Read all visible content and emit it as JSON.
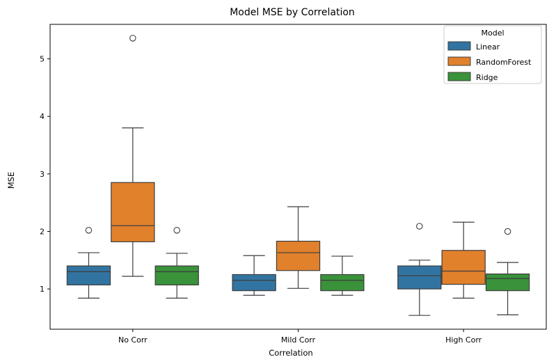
{
  "chart_data": {
    "type": "box",
    "title": "Model MSE by Correlation",
    "xlabel": "Correlation",
    "ylabel": "MSE",
    "ylim": [
      0.3,
      5.6
    ],
    "yticks": [
      1,
      2,
      3,
      4,
      5
    ],
    "categories": [
      "No Corr",
      "Mild Corr",
      "High Corr"
    ],
    "legend": {
      "title": "Model",
      "position": "top-right"
    },
    "series": [
      {
        "name": "Linear",
        "color": "#3274a1",
        "boxes": [
          {
            "whisker_low": 0.84,
            "q1": 1.07,
            "median": 1.3,
            "q3": 1.4,
            "whisker_high": 1.63,
            "outliers": [
              2.02
            ]
          },
          {
            "whisker_low": 0.89,
            "q1": 0.97,
            "median": 1.15,
            "q3": 1.25,
            "whisker_high": 1.58,
            "outliers": []
          },
          {
            "whisker_low": 0.54,
            "q1": 1.0,
            "median": 1.23,
            "q3": 1.4,
            "whisker_high": 1.5,
            "outliers": [
              2.09
            ]
          }
        ]
      },
      {
        "name": "RandomForest",
        "color": "#e1812c",
        "boxes": [
          {
            "whisker_low": 1.22,
            "q1": 1.82,
            "median": 2.1,
            "q3": 2.85,
            "whisker_high": 3.8,
            "outliers": [
              5.36
            ]
          },
          {
            "whisker_low": 1.01,
            "q1": 1.32,
            "median": 1.63,
            "q3": 1.83,
            "whisker_high": 2.43,
            "outliers": []
          },
          {
            "whisker_low": 0.84,
            "q1": 1.08,
            "median": 1.31,
            "q3": 1.67,
            "whisker_high": 2.16,
            "outliers": []
          }
        ]
      },
      {
        "name": "Ridge",
        "color": "#3a923a",
        "boxes": [
          {
            "whisker_low": 0.84,
            "q1": 1.07,
            "median": 1.3,
            "q3": 1.4,
            "whisker_high": 1.62,
            "outliers": [
              2.02
            ]
          },
          {
            "whisker_low": 0.89,
            "q1": 0.97,
            "median": 1.15,
            "q3": 1.25,
            "whisker_high": 1.57,
            "outliers": []
          },
          {
            "whisker_low": 0.55,
            "q1": 0.97,
            "median": 1.18,
            "q3": 1.26,
            "whisker_high": 1.46,
            "outliers": [
              2.0
            ]
          }
        ]
      }
    ]
  }
}
